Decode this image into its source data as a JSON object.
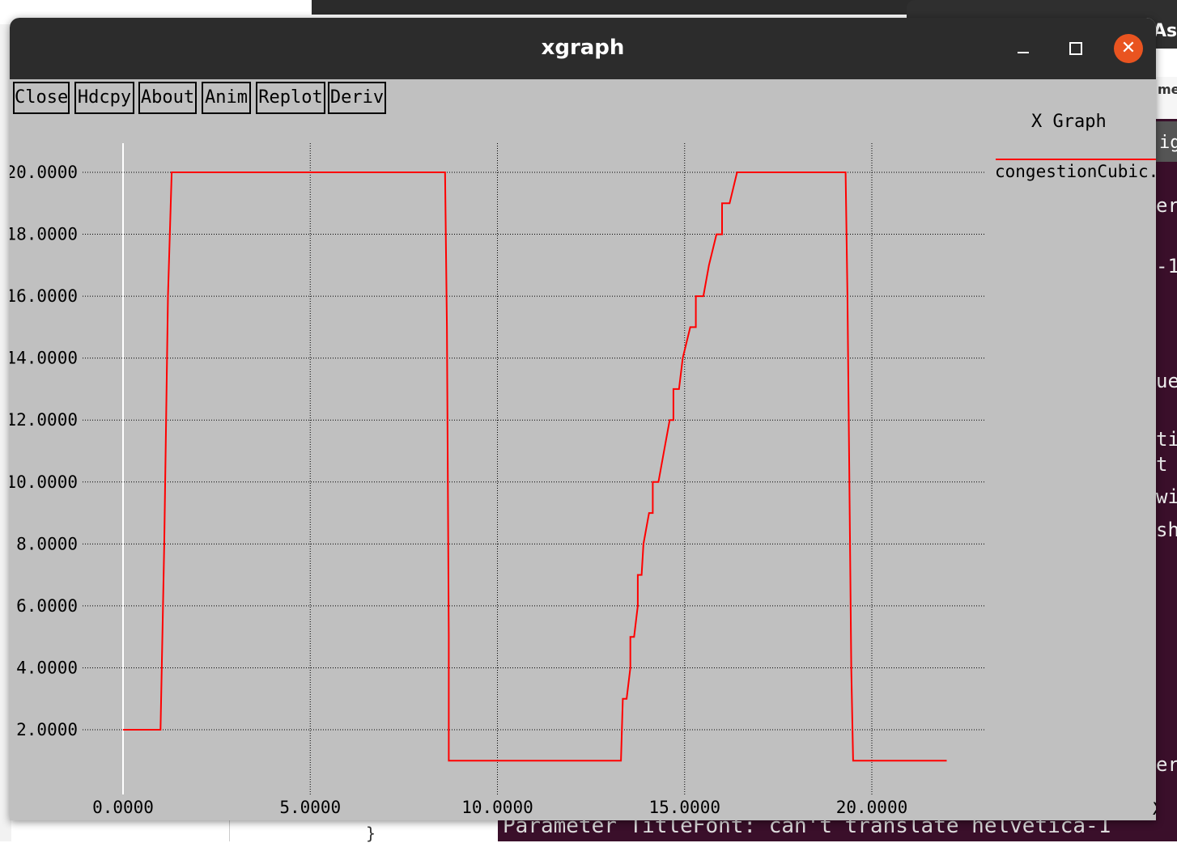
{
  "window": {
    "title": "xgraph"
  },
  "toolbar": {
    "close_label": "Close",
    "hdcpy_label": "Hdcpy",
    "about_label": "About",
    "anim_label": "Anim",
    "replot_label": "Replot",
    "deriv_label": "Deriv"
  },
  "background": {
    "top_right_text": "As",
    "right_top_text": "me",
    "right_tab_text": "ig",
    "terminal_fragments": [
      "er",
      "-1",
      "ue",
      "ti",
      "t",
      "wi",
      "sh",
      "er"
    ],
    "bottom_terminal_text": "Parameter TitleFont: can't translate  helvetica-1",
    "bottom_brace": "}"
  },
  "colors": {
    "series": "#ff0000",
    "plot_bg": "#c0c0c0",
    "close_button": "#e95420"
  },
  "chart_data": {
    "type": "line",
    "title": "X Graph",
    "xlabel": "X",
    "ylabel": "",
    "xlim": [
      -3.0,
      23.0
    ],
    "ylim": [
      0.0,
      21.0
    ],
    "xticks": [
      0,
      5,
      10,
      15,
      20
    ],
    "yticks": [
      2,
      4,
      6,
      8,
      10,
      12,
      14,
      16,
      18,
      20
    ],
    "x_tick_labels": [
      "0.0000",
      "5.0000",
      "10.0000",
      "15.0000",
      "20.0000"
    ],
    "y_tick_labels": [
      "2.0000",
      "4.0000",
      "6.0000",
      "8.0000",
      "10.0000",
      "12.0000",
      "14.0000",
      "16.0000",
      "18.0000",
      "20.0000"
    ],
    "grid": true,
    "legend_position": "top-right",
    "series": [
      {
        "name": "congestionCubic.xg",
        "x": [
          0,
          1.0,
          1.1,
          1.2,
          1.25,
          1.3,
          1.3,
          8.6,
          8.65,
          8.7,
          8.7,
          13.3,
          13.35,
          13.45,
          13.45,
          13.55,
          13.55,
          13.65,
          13.75,
          13.75,
          13.85,
          13.9,
          13.9,
          14.05,
          14.15,
          14.15,
          14.3,
          14.45,
          14.45,
          14.6,
          14.7,
          14.7,
          14.85,
          14.95,
          14.95,
          15.15,
          15.3,
          15.3,
          15.5,
          15.65,
          15.65,
          15.85,
          16.0,
          16.0,
          16.2,
          16.4,
          16.4,
          16.6,
          16.8,
          16.8,
          17.0,
          17.2,
          17.2,
          17.45,
          17.65,
          17.65,
          17.9,
          18.05,
          18.05,
          19.3,
          19.35,
          19.4,
          19.45,
          19.5,
          19.5,
          22.0
        ],
        "y": [
          2,
          2,
          8,
          16,
          18,
          20,
          20,
          20,
          15,
          5,
          1,
          1,
          3,
          3,
          3,
          4,
          5,
          5,
          6,
          7,
          7,
          8,
          8,
          9,
          9,
          10,
          10,
          11,
          11,
          12,
          12,
          13,
          13,
          14,
          14,
          15,
          15,
          16,
          16,
          17,
          17,
          18,
          18,
          19,
          19,
          20,
          20,
          20,
          20,
          20,
          20,
          20,
          20,
          20,
          20,
          20,
          20,
          20,
          20,
          20,
          16,
          10,
          4,
          1,
          1,
          1
        ]
      }
    ]
  }
}
